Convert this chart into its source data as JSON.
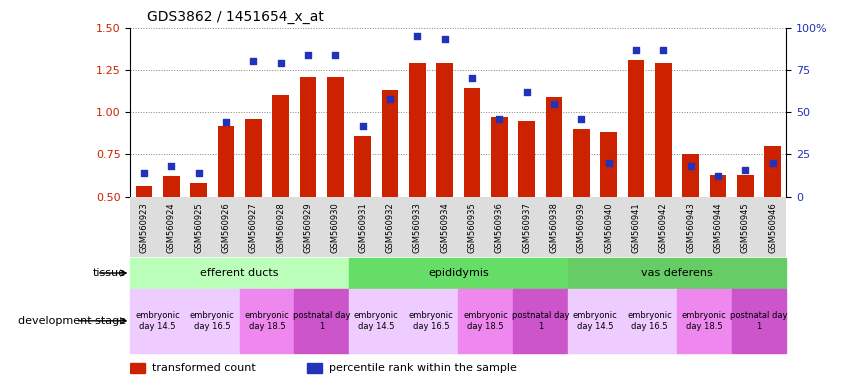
{
  "title": "GDS3862 / 1451654_x_at",
  "samples": [
    "GSM560923",
    "GSM560924",
    "GSM560925",
    "GSM560926",
    "GSM560927",
    "GSM560928",
    "GSM560929",
    "GSM560930",
    "GSM560931",
    "GSM560932",
    "GSM560933",
    "GSM560934",
    "GSM560935",
    "GSM560936",
    "GSM560937",
    "GSM560938",
    "GSM560939",
    "GSM560940",
    "GSM560941",
    "GSM560942",
    "GSM560943",
    "GSM560944",
    "GSM560945",
    "GSM560946"
  ],
  "transformed_count": [
    0.56,
    0.62,
    0.58,
    0.92,
    0.96,
    1.1,
    1.21,
    1.21,
    0.86,
    1.13,
    1.29,
    1.29,
    1.14,
    0.97,
    0.95,
    1.09,
    0.9,
    0.88,
    1.31,
    1.29,
    0.75,
    0.63,
    0.63,
    0.8
  ],
  "percentile_rank": [
    14,
    18,
    14,
    44,
    80,
    79,
    84,
    84,
    42,
    58,
    95,
    93,
    70,
    46,
    62,
    55,
    46,
    20,
    87,
    87,
    18,
    12,
    16,
    20
  ],
  "ylim_left": [
    0.5,
    1.5
  ],
  "ylim_right": [
    0,
    100
  ],
  "yticks_left": [
    0.5,
    0.75,
    1.0,
    1.25,
    1.5
  ],
  "yticks_right": [
    0,
    25,
    50,
    75,
    100
  ],
  "bar_color": "#cc2200",
  "dot_color": "#2233bb",
  "tissues": [
    {
      "label": "efferent ducts",
      "start": 0,
      "end": 7,
      "color": "#bbffbb"
    },
    {
      "label": "epididymis",
      "start": 8,
      "end": 15,
      "color": "#66dd66"
    },
    {
      "label": "vas deferens",
      "start": 16,
      "end": 23,
      "color": "#66cc66"
    }
  ],
  "dev_stages": [
    {
      "label": "embryonic\nday 14.5",
      "start": 0,
      "end": 1,
      "color": "#eeccff"
    },
    {
      "label": "embryonic\nday 16.5",
      "start": 2,
      "end": 3,
      "color": "#eeccff"
    },
    {
      "label": "embryonic\nday 18.5",
      "start": 4,
      "end": 5,
      "color": "#ee88ee"
    },
    {
      "label": "postnatal day\n1",
      "start": 6,
      "end": 7,
      "color": "#cc55cc"
    },
    {
      "label": "embryonic\nday 14.5",
      "start": 8,
      "end": 9,
      "color": "#eeccff"
    },
    {
      "label": "embryonic\nday 16.5",
      "start": 10,
      "end": 11,
      "color": "#eeccff"
    },
    {
      "label": "embryonic\nday 18.5",
      "start": 12,
      "end": 13,
      "color": "#ee88ee"
    },
    {
      "label": "postnatal day\n1",
      "start": 14,
      "end": 15,
      "color": "#cc55cc"
    },
    {
      "label": "embryonic\nday 14.5",
      "start": 16,
      "end": 17,
      "color": "#eeccff"
    },
    {
      "label": "embryonic\nday 16.5",
      "start": 18,
      "end": 19,
      "color": "#eeccff"
    },
    {
      "label": "embryonic\nday 18.5",
      "start": 20,
      "end": 21,
      "color": "#ee88ee"
    },
    {
      "label": "postnatal day\n1",
      "start": 22,
      "end": 23,
      "color": "#cc55cc"
    }
  ],
  "xticklabel_bg": "#dddddd",
  "xticklabel_fontsize": 6,
  "bar_width": 0.6,
  "title_fontsize": 10,
  "axis_fontsize": 8,
  "legend_fontsize": 8
}
